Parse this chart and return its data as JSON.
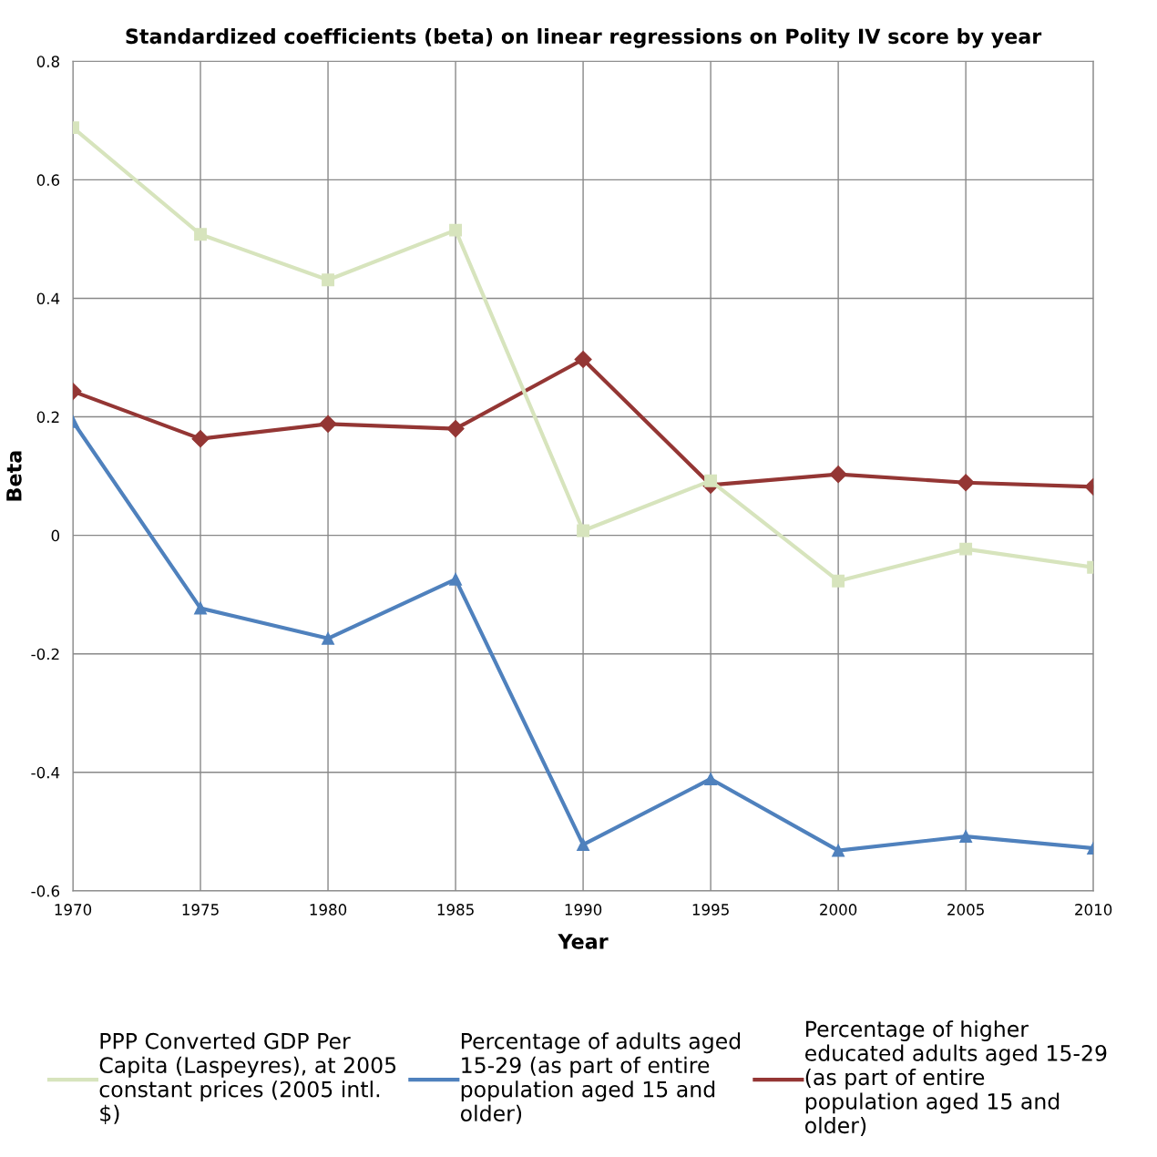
{
  "chart_data": {
    "type": "line",
    "title": "Standardized coefficients (beta) on linear regressions on Polity IV score by year",
    "xlabel": "Year",
    "ylabel": "Beta",
    "x": [
      1970,
      1975,
      1980,
      1985,
      1990,
      1995,
      2000,
      2005,
      2010
    ],
    "series": [
      {
        "name": "PPP Converted GDP Per\nCapita (Laspeyres), at 2005\nconstant prices (2005 intl.\n$)",
        "color": "#d7e4bd",
        "marker": "square",
        "values": [
          0.688,
          0.508,
          0.431,
          0.515,
          0.008,
          0.092,
          -0.077,
          -0.023,
          -0.054
        ]
      },
      {
        "name": "Percentage of adults aged\n15-29 (as part of entire\npopulation aged 15 and\nolder)",
        "color": "#4f81bd",
        "marker": "triangle",
        "values": [
          0.192,
          -0.123,
          -0.174,
          -0.074,
          -0.522,
          -0.411,
          -0.532,
          -0.508,
          -0.528
        ]
      },
      {
        "name": "Percentage of higher\neducated adults aged 15-29\n(as part of entire\npopulation aged 15 and\nolder)",
        "color": "#943634",
        "marker": "diamond",
        "values": [
          0.243,
          0.163,
          0.188,
          0.18,
          0.297,
          0.085,
          0.103,
          0.089,
          0.082
        ]
      }
    ],
    "xlim": [
      1970,
      2010
    ],
    "xticks": [
      1970,
      1975,
      1980,
      1985,
      1990,
      1995,
      2000,
      2005,
      2010
    ],
    "ylim": [
      -0.6,
      0.8
    ],
    "yticks": [
      -0.6,
      -0.4,
      -0.2,
      0,
      0.2,
      0.4,
      0.6,
      0.8
    ],
    "grid": true,
    "legend": "bottom",
    "line_style": "solid"
  }
}
